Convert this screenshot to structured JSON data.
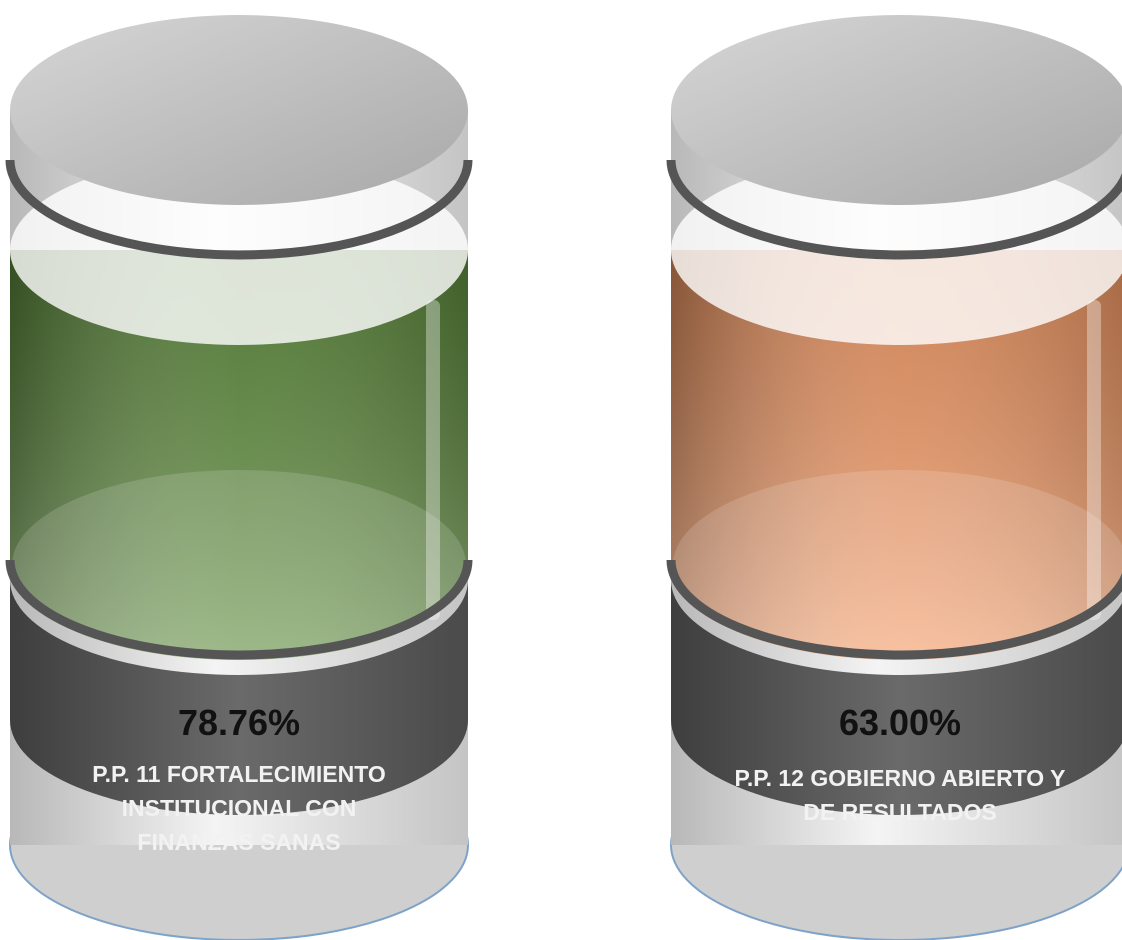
{
  "items": [
    {
      "value": "78.76%",
      "label": [
        "P.P. 11 FORTALECIMIENTO",
        "INSTITUCIONAL CON",
        "FINANZAS SANAS"
      ],
      "color": "#5e8c3c"
    },
    {
      "value": "63.00%",
      "label": [
        "P.P. 12 GOBIERNO ABIERTO Y",
        "DE RESULTADOS"
      ],
      "color": "#f59a64"
    }
  ]
}
